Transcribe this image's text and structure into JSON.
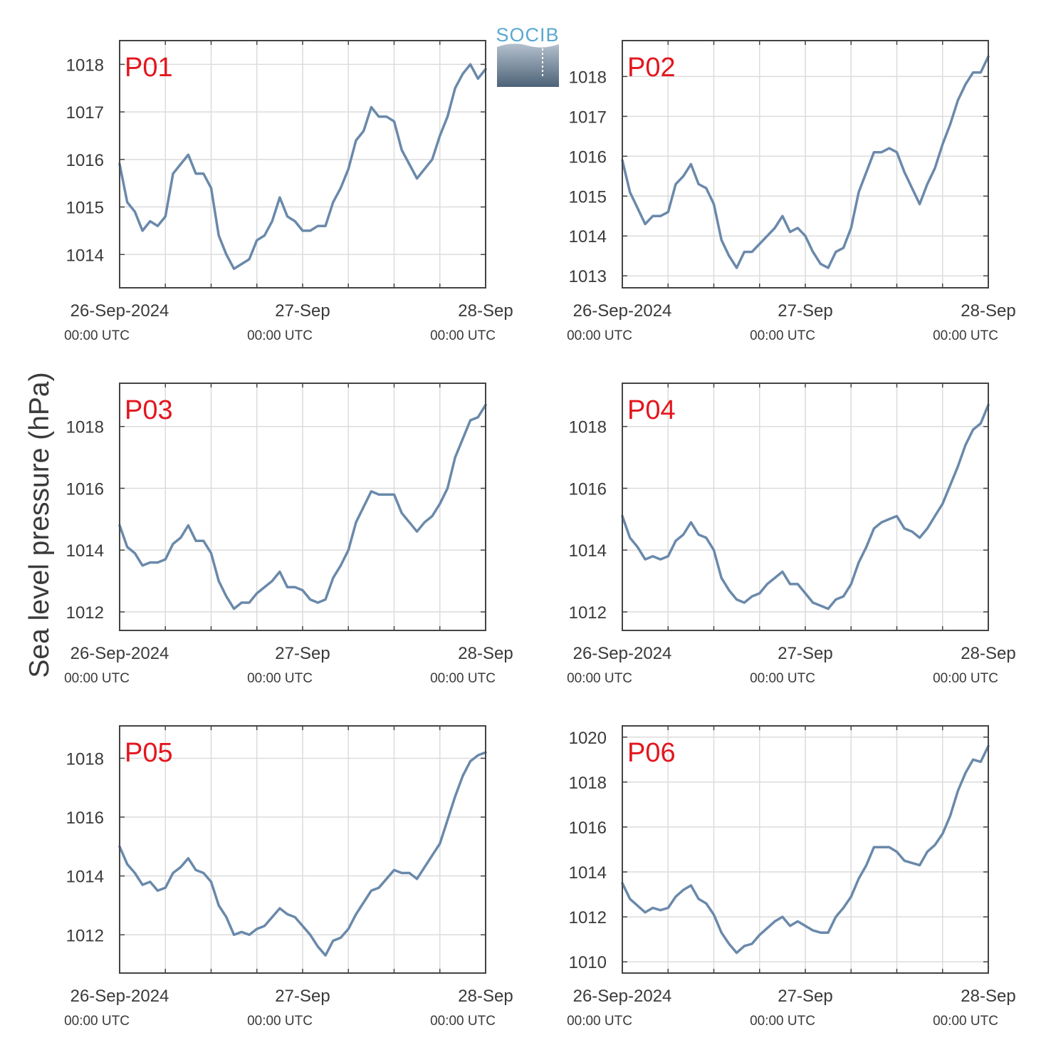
{
  "figure": {
    "ylabel": "Sea level pressure (hPa)",
    "logo_text": "SOCIB",
    "colors": {
      "line": "#6a89ab",
      "label": "#e3161e",
      "grid": "#dcdcdc",
      "axis": "#444444",
      "text": "#3a3a3a"
    }
  },
  "chart_data": [
    {
      "type": "line",
      "panel": "P01",
      "x_ticks": [
        {
          "x": 0,
          "date": "26-Sep-2024",
          "time": "00:00 UTC"
        },
        {
          "x": 24,
          "date": "27-Sep",
          "time": "00:00 UTC"
        },
        {
          "x": 48,
          "date": "28-Sep",
          "time": "00:00 UTC"
        }
      ],
      "xlim": [
        0,
        48
      ],
      "ylim": [
        1013.3,
        1018.5
      ],
      "y_ticks": [
        1014,
        1015,
        1016,
        1017,
        1018
      ],
      "grid": true,
      "series": [
        {
          "x": [
            0,
            1,
            2,
            3,
            4,
            5,
            6,
            7,
            8,
            9,
            10,
            11,
            12,
            13,
            14,
            15,
            16,
            17,
            18,
            19,
            20,
            21,
            22,
            23,
            24,
            25,
            26,
            27,
            28,
            29,
            30,
            31,
            32,
            33,
            34,
            35,
            36,
            37,
            38,
            39,
            40,
            41,
            42,
            43,
            44,
            45,
            46,
            47,
            48
          ],
          "y": [
            1015.9,
            1015.1,
            1014.9,
            1014.5,
            1014.7,
            1014.6,
            1014.8,
            1015.7,
            1015.9,
            1016.1,
            1015.7,
            1015.7,
            1015.4,
            1014.4,
            1014.0,
            1013.7,
            1013.8,
            1013.9,
            1014.3,
            1014.4,
            1014.7,
            1015.2,
            1014.8,
            1014.7,
            1014.5,
            1014.5,
            1014.6,
            1014.6,
            1015.1,
            1015.4,
            1015.8,
            1016.4,
            1016.6,
            1017.1,
            1016.9,
            1016.9,
            1016.8,
            1016.2,
            1015.9,
            1015.6,
            1015.8,
            1016.0,
            1016.5,
            1016.9,
            1017.5,
            1017.8,
            1018.0,
            1017.7,
            1017.9
          ]
        }
      ]
    },
    {
      "type": "line",
      "panel": "P02",
      "x_ticks": [
        {
          "x": 0,
          "date": "26-Sep-2024",
          "time": "00:00 UTC"
        },
        {
          "x": 24,
          "date": "27-Sep",
          "time": "00:00 UTC"
        },
        {
          "x": 48,
          "date": "28-Sep",
          "time": "00:00 UTC"
        }
      ],
      "xlim": [
        0,
        48
      ],
      "ylim": [
        1012.7,
        1018.9
      ],
      "y_ticks": [
        1013,
        1014,
        1015,
        1016,
        1017,
        1018
      ],
      "grid": true,
      "series": [
        {
          "x": [
            0,
            1,
            2,
            3,
            4,
            5,
            6,
            7,
            8,
            9,
            10,
            11,
            12,
            13,
            14,
            15,
            16,
            17,
            18,
            19,
            20,
            21,
            22,
            23,
            24,
            25,
            26,
            27,
            28,
            29,
            30,
            31,
            32,
            33,
            34,
            35,
            36,
            37,
            38,
            39,
            40,
            41,
            42,
            43,
            44,
            45,
            46,
            47,
            48
          ],
          "y": [
            1015.9,
            1015.1,
            1014.7,
            1014.3,
            1014.5,
            1014.5,
            1014.6,
            1015.3,
            1015.5,
            1015.8,
            1015.3,
            1015.2,
            1014.8,
            1013.9,
            1013.5,
            1013.2,
            1013.6,
            1013.6,
            1013.8,
            1014.0,
            1014.2,
            1014.5,
            1014.1,
            1014.2,
            1014.0,
            1013.6,
            1013.3,
            1013.2,
            1013.6,
            1013.7,
            1014.2,
            1015.1,
            1015.6,
            1016.1,
            1016.1,
            1016.2,
            1016.1,
            1015.6,
            1015.2,
            1014.8,
            1015.3,
            1015.7,
            1016.3,
            1016.8,
            1017.4,
            1017.8,
            1018.1,
            1018.1,
            1018.5
          ]
        }
      ]
    },
    {
      "type": "line",
      "panel": "P03",
      "x_ticks": [
        {
          "x": 0,
          "date": "26-Sep-2024",
          "time": "00:00 UTC"
        },
        {
          "x": 24,
          "date": "27-Sep",
          "time": "00:00 UTC"
        },
        {
          "x": 48,
          "date": "28-Sep",
          "time": "00:00 UTC"
        }
      ],
      "xlim": [
        0,
        48
      ],
      "ylim": [
        1011.4,
        1019.4
      ],
      "y_ticks": [
        1012,
        1014,
        1016,
        1018
      ],
      "grid": true,
      "series": [
        {
          "x": [
            0,
            1,
            2,
            3,
            4,
            5,
            6,
            7,
            8,
            9,
            10,
            11,
            12,
            13,
            14,
            15,
            16,
            17,
            18,
            19,
            20,
            21,
            22,
            23,
            24,
            25,
            26,
            27,
            28,
            29,
            30,
            31,
            32,
            33,
            34,
            35,
            36,
            37,
            38,
            39,
            40,
            41,
            42,
            43,
            44,
            45,
            46,
            47,
            48
          ],
          "y": [
            1014.8,
            1014.1,
            1013.9,
            1013.5,
            1013.6,
            1013.6,
            1013.7,
            1014.2,
            1014.4,
            1014.8,
            1014.3,
            1014.3,
            1013.9,
            1013.0,
            1012.5,
            1012.1,
            1012.3,
            1012.3,
            1012.6,
            1012.8,
            1013.0,
            1013.3,
            1012.8,
            1012.8,
            1012.7,
            1012.4,
            1012.3,
            1012.4,
            1013.1,
            1013.5,
            1014.0,
            1014.9,
            1015.4,
            1015.9,
            1015.8,
            1015.8,
            1015.8,
            1015.2,
            1014.9,
            1014.6,
            1014.9,
            1015.1,
            1015.5,
            1016.0,
            1017.0,
            1017.6,
            1018.2,
            1018.3,
            1018.7
          ]
        }
      ]
    },
    {
      "type": "line",
      "panel": "P04",
      "x_ticks": [
        {
          "x": 0,
          "date": "26-Sep-2024",
          "time": "00:00 UTC"
        },
        {
          "x": 24,
          "date": "27-Sep",
          "time": "00:00 UTC"
        },
        {
          "x": 48,
          "date": "28-Sep",
          "time": "00:00 UTC"
        }
      ],
      "xlim": [
        0,
        48
      ],
      "ylim": [
        1011.4,
        1019.4
      ],
      "y_ticks": [
        1012,
        1014,
        1016,
        1018
      ],
      "grid": true,
      "series": [
        {
          "x": [
            0,
            1,
            2,
            3,
            4,
            5,
            6,
            7,
            8,
            9,
            10,
            11,
            12,
            13,
            14,
            15,
            16,
            17,
            18,
            19,
            20,
            21,
            22,
            23,
            24,
            25,
            26,
            27,
            28,
            29,
            30,
            31,
            32,
            33,
            34,
            35,
            36,
            37,
            38,
            39,
            40,
            41,
            42,
            43,
            44,
            45,
            46,
            47,
            48
          ],
          "y": [
            1015.1,
            1014.4,
            1014.1,
            1013.7,
            1013.8,
            1013.7,
            1013.8,
            1014.3,
            1014.5,
            1014.9,
            1014.5,
            1014.4,
            1014.0,
            1013.1,
            1012.7,
            1012.4,
            1012.3,
            1012.5,
            1012.6,
            1012.9,
            1013.1,
            1013.3,
            1012.9,
            1012.9,
            1012.6,
            1012.3,
            1012.2,
            1012.1,
            1012.4,
            1012.5,
            1012.9,
            1013.6,
            1014.1,
            1014.7,
            1014.9,
            1015.0,
            1015.1,
            1014.7,
            1014.6,
            1014.4,
            1014.7,
            1015.1,
            1015.5,
            1016.1,
            1016.7,
            1017.4,
            1017.9,
            1018.1,
            1018.7
          ]
        }
      ]
    },
    {
      "type": "line",
      "panel": "P05",
      "x_ticks": [
        {
          "x": 0,
          "date": "26-Sep-2024",
          "time": "00:00 UTC"
        },
        {
          "x": 24,
          "date": "27-Sep",
          "time": "00:00 UTC"
        },
        {
          "x": 48,
          "date": "28-Sep",
          "time": "00:00 UTC"
        }
      ],
      "xlim": [
        0,
        48
      ],
      "ylim": [
        1010.7,
        1019.1
      ],
      "y_ticks": [
        1012,
        1014,
        1016,
        1018
      ],
      "grid": true,
      "series": [
        {
          "x": [
            0,
            1,
            2,
            3,
            4,
            5,
            6,
            7,
            8,
            9,
            10,
            11,
            12,
            13,
            14,
            15,
            16,
            17,
            18,
            19,
            20,
            21,
            22,
            23,
            24,
            25,
            26,
            27,
            28,
            29,
            30,
            31,
            32,
            33,
            34,
            35,
            36,
            37,
            38,
            39,
            40,
            41,
            42,
            43,
            44,
            45,
            46,
            47,
            48
          ],
          "y": [
            1015.0,
            1014.4,
            1014.1,
            1013.7,
            1013.8,
            1013.5,
            1013.6,
            1014.1,
            1014.3,
            1014.6,
            1014.2,
            1014.1,
            1013.8,
            1013.0,
            1012.6,
            1012.0,
            1012.1,
            1012.0,
            1012.2,
            1012.3,
            1012.6,
            1012.9,
            1012.7,
            1012.6,
            1012.3,
            1012.0,
            1011.6,
            1011.3,
            1011.8,
            1011.9,
            1012.2,
            1012.7,
            1013.1,
            1013.5,
            1013.6,
            1013.9,
            1014.2,
            1014.1,
            1014.1,
            1013.9,
            1014.3,
            1014.7,
            1015.1,
            1015.9,
            1016.7,
            1017.4,
            1017.9,
            1018.1,
            1018.2
          ]
        }
      ]
    },
    {
      "type": "line",
      "panel": "P06",
      "x_ticks": [
        {
          "x": 0,
          "date": "26-Sep-2024",
          "time": "00:00 UTC"
        },
        {
          "x": 24,
          "date": "27-Sep",
          "time": "00:00 UTC"
        },
        {
          "x": 48,
          "date": "28-Sep",
          "time": "00:00 UTC"
        }
      ],
      "xlim": [
        0,
        48
      ],
      "ylim": [
        1009.5,
        1020.5
      ],
      "y_ticks": [
        1010,
        1012,
        1014,
        1016,
        1018,
        1020
      ],
      "grid": true,
      "series": [
        {
          "x": [
            0,
            1,
            2,
            3,
            4,
            5,
            6,
            7,
            8,
            9,
            10,
            11,
            12,
            13,
            14,
            15,
            16,
            17,
            18,
            19,
            20,
            21,
            22,
            23,
            24,
            25,
            26,
            27,
            28,
            29,
            30,
            31,
            32,
            33,
            34,
            35,
            36,
            37,
            38,
            39,
            40,
            41,
            42,
            43,
            44,
            45,
            46,
            47,
            48
          ],
          "y": [
            1013.5,
            1012.8,
            1012.5,
            1012.2,
            1012.4,
            1012.3,
            1012.4,
            1012.9,
            1013.2,
            1013.4,
            1012.8,
            1012.6,
            1012.1,
            1011.3,
            1010.8,
            1010.4,
            1010.7,
            1010.8,
            1011.2,
            1011.5,
            1011.8,
            1012.0,
            1011.6,
            1011.8,
            1011.6,
            1011.4,
            1011.3,
            1011.3,
            1012.0,
            1012.4,
            1012.9,
            1013.7,
            1014.3,
            1015.1,
            1015.1,
            1015.1,
            1014.9,
            1014.5,
            1014.4,
            1014.3,
            1014.9,
            1015.2,
            1015.7,
            1016.5,
            1017.6,
            1018.4,
            1019.0,
            1018.9,
            1019.6
          ]
        }
      ]
    }
  ]
}
